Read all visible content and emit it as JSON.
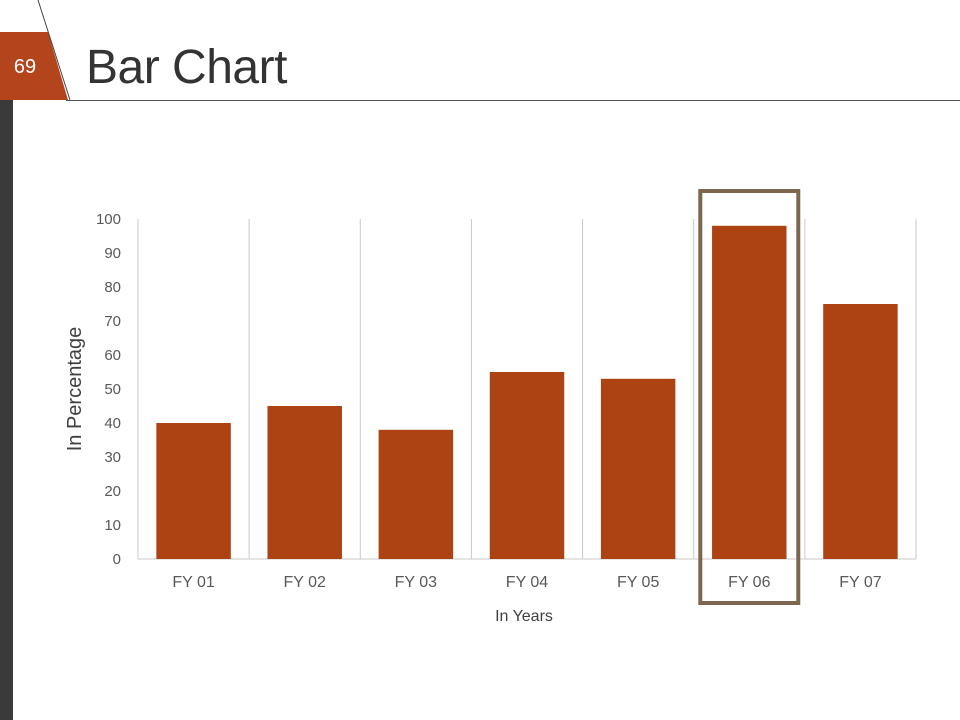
{
  "slide": {
    "number": "69",
    "title": "Bar Chart"
  },
  "colors": {
    "bar": "#ad4212",
    "badge": "#b3441b",
    "highlight_box": "#7d6650",
    "left_stripe": "#3a3a3a",
    "gridline": "#c8c8c8",
    "axis_text": "#595959"
  },
  "chart_data": {
    "type": "bar",
    "categories": [
      "FY 01",
      "FY 02",
      "FY 03",
      "FY 04",
      "FY 05",
      "FY 06",
      "FY 07"
    ],
    "values": [
      40,
      45,
      38,
      55,
      53,
      98,
      75
    ],
    "xlabel": "In Years",
    "ylabel": "In Percentage",
    "ylim": [
      0,
      100
    ],
    "yticks": [
      0,
      10,
      20,
      30,
      40,
      50,
      60,
      70,
      80,
      90,
      100
    ],
    "ytick_labels": [
      "0",
      "10",
      "20",
      "30",
      "40",
      "50",
      "60",
      "70",
      "80",
      "90",
      "100"
    ],
    "grid": "vertical category separators",
    "highlighted_category": "FY 06"
  }
}
